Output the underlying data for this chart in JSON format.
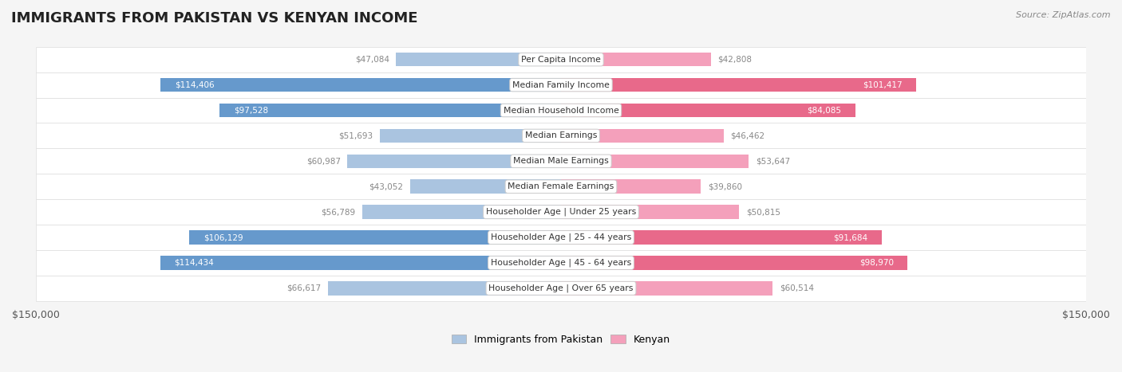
{
  "title": "IMMIGRANTS FROM PAKISTAN VS KENYAN INCOME",
  "source": "Source: ZipAtlas.com",
  "categories": [
    "Per Capita Income",
    "Median Family Income",
    "Median Household Income",
    "Median Earnings",
    "Median Male Earnings",
    "Median Female Earnings",
    "Householder Age | Under 25 years",
    "Householder Age | 25 - 44 years",
    "Householder Age | 45 - 64 years",
    "Householder Age | Over 65 years"
  ],
  "pakistan_values": [
    47084,
    114406,
    97528,
    51693,
    60987,
    43052,
    56789,
    106129,
    114434,
    66617
  ],
  "kenyan_values": [
    42808,
    101417,
    84085,
    46462,
    53647,
    39860,
    50815,
    91684,
    98970,
    60514
  ],
  "pakistan_labels": [
    "$47,084",
    "$114,406",
    "$97,528",
    "$51,693",
    "$60,987",
    "$43,052",
    "$56,789",
    "$106,129",
    "$114,434",
    "$66,617"
  ],
  "kenyan_labels": [
    "$42,808",
    "$101,417",
    "$84,085",
    "$46,462",
    "$53,647",
    "$39,860",
    "$50,815",
    "$91,684",
    "$98,970",
    "$60,514"
  ],
  "pakistan_color_light": "#aac4e0",
  "pakistan_color_dark": "#6699cc",
  "kenyan_color_light": "#f4a0bb",
  "kenyan_color_dark": "#e8698a",
  "label_color_dark": "#ffffff",
  "label_color_light": "#888888",
  "axis_max": 150000,
  "bar_height": 0.55,
  "background_color": "#f5f5f5",
  "row_bg_color": "#ffffff",
  "row_alt_color": "#f0f0f0"
}
